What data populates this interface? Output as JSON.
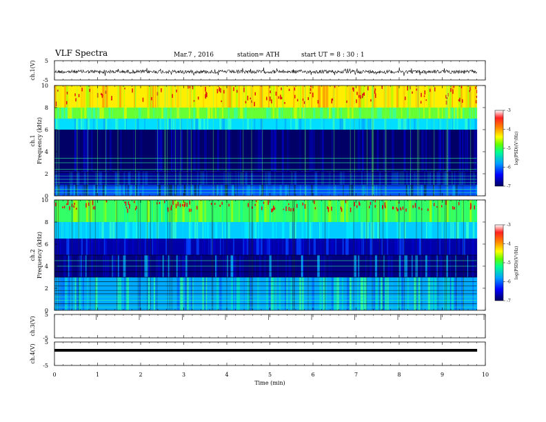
{
  "header": {
    "title": "VLF  Spectra",
    "date": "Mar.7  , 2016",
    "station": "station= ATH",
    "start": "start  UT =   8  : 30 : 1"
  },
  "chart_data": [
    {
      "type": "line",
      "panel": "ch1-timeseries",
      "ylabel": "ch.1(V)",
      "yticks": [
        "5",
        "-5"
      ],
      "ylim": [
        -5,
        5
      ],
      "note_values": "noisy waveform around ~0 V",
      "x": [
        0,
        9.8
      ]
    },
    {
      "type": "heatmap",
      "panel": "ch1-spectrogram",
      "ylabel": "ch.1\nFrequency  (kHz)",
      "ylabel_line1": "ch.1",
      "ylabel_line2": "Frequency  (kHz)",
      "yticks": [
        "10",
        "8",
        "6",
        "4",
        "2",
        "0"
      ],
      "ylim": [
        0,
        10
      ],
      "xlim": [
        0,
        10
      ],
      "colorbar": {
        "label": "log(PSD)(V²/Hz)",
        "ticks": [
          "-3",
          "-4",
          "-5",
          "-6",
          "-7"
        ],
        "range": [
          -7,
          -3
        ],
        "colors": [
          "#000080",
          "#0000ff",
          "#00a0ff",
          "#00ff80",
          "#80ff00",
          "#ffff00",
          "#ff8000",
          "#ff0000",
          "#ffffff"
        ]
      }
    },
    {
      "type": "heatmap",
      "panel": "ch2-spectrogram",
      "ylabel_line1": "ch.2",
      "ylabel_line2": "Frequency  (kHz)",
      "yticks": [
        "10",
        "8",
        "6",
        "4",
        "2",
        "0"
      ],
      "ylim": [
        0,
        10
      ],
      "xlim": [
        0,
        10
      ],
      "colorbar": {
        "label": "log(PSD)(V²/Hz)",
        "ticks": [
          "-3",
          "-4",
          "-5",
          "-6",
          "-7"
        ],
        "range": [
          -7,
          -3
        ]
      }
    },
    {
      "type": "line",
      "panel": "ch3-timeseries",
      "ylabel": "ch.3(V)",
      "yticks": [
        "5",
        "-5"
      ],
      "ylim": [
        -5,
        5
      ]
    },
    {
      "type": "line",
      "panel": "ch4-timeseries",
      "ylabel": "ch.4(V)",
      "yticks": [
        "5",
        "-5"
      ],
      "ylim": [
        -5,
        5
      ],
      "values_note": "flat line near ~0 V"
    }
  ],
  "xaxis": {
    "label": "Time  (min)",
    "ticks": [
      "0",
      "1",
      "2",
      "3",
      "4",
      "5",
      "6",
      "7",
      "8",
      "9",
      "10"
    ],
    "range": [
      0,
      10
    ]
  }
}
